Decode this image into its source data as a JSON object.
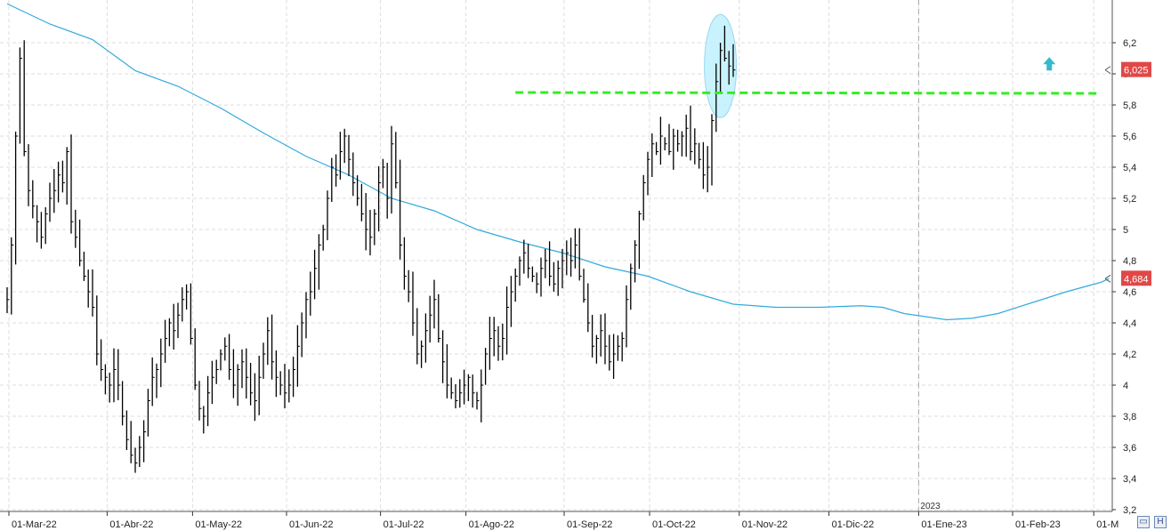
{
  "chart_data": {
    "type": "ohlc",
    "title": "",
    "xlabel": "",
    "ylabel": "",
    "ylim": [
      3.2,
      6.45
    ],
    "yticks": [
      "3,2",
      "3,4",
      "3,6",
      "3,8",
      "4",
      "4,2",
      "4,4",
      "4,6",
      "4,8",
      "5",
      "5,2",
      "5,4",
      "5,6",
      "5,8",
      "6",
      "6,2"
    ],
    "ytick_values": [
      3.2,
      3.4,
      3.6,
      3.8,
      4.0,
      4.2,
      4.4,
      4.6,
      4.8,
      5.0,
      5.2,
      5.4,
      5.6,
      5.8,
      6.0,
      6.2
    ],
    "x_months": [
      {
        "label": "01-Mar-22",
        "bar": 0
      },
      {
        "label": "01-Abr-22",
        "bar": 23
      },
      {
        "label": "01-May-22",
        "bar": 43
      },
      {
        "label": "01-Jun-22",
        "bar": 65
      },
      {
        "label": "01-Jul-22",
        "bar": 87
      },
      {
        "label": "01-Ago-22",
        "bar": 107
      },
      {
        "label": "01-Sep-22",
        "bar": 130
      },
      {
        "label": "01-Oct-22",
        "bar": 150
      },
      {
        "label": "01-Nov-22",
        "bar": 171
      },
      {
        "label": "01-Dic-22",
        "bar": 192
      },
      {
        "label": "01-Ene-23",
        "bar": 213
      },
      {
        "label": "01-Feb-23",
        "bar": 235
      },
      {
        "label": "01-M",
        "bar": 254
      }
    ],
    "year_marker": {
      "label": "2023",
      "bar": 213
    },
    "price_close": [
      4.55,
      4.9,
      5.6,
      6.1,
      5.5,
      5.25,
      5.15,
      5.05,
      4.95,
      5.1,
      5.2,
      5.25,
      5.35,
      5.3,
      5.5,
      5.05,
      4.95,
      4.8,
      4.7,
      4.6,
      4.5,
      4.2,
      4.1,
      4.05,
      4.0,
      4.1,
      4.0,
      3.8,
      3.65,
      3.55,
      3.5,
      3.6,
      3.7,
      3.9,
      4.05,
      4.1,
      4.2,
      4.3,
      4.4,
      4.35,
      4.45,
      4.55,
      4.6,
      4.3,
      4.0,
      3.85,
      3.8,
      3.95,
      4.05,
      4.1,
      4.2,
      4.25,
      4.1,
      4.0,
      4.1,
      4.15,
      4.05,
      3.95,
      3.9,
      4.05,
      4.2,
      4.35,
      4.15,
      4.05,
      4.0,
      3.95,
      4.0,
      4.1,
      4.25,
      4.4,
      4.55,
      4.6,
      4.75,
      4.9,
      5.0,
      5.2,
      5.4,
      5.35,
      5.5,
      5.6,
      5.45,
      5.3,
      5.2,
      5.1,
      5.0,
      4.95,
      5.1,
      5.3,
      5.4,
      5.2,
      5.55,
      5.3,
      4.9,
      4.7,
      4.6,
      4.4,
      4.2,
      4.25,
      4.35,
      4.45,
      4.55,
      4.3,
      4.15,
      4.0,
      3.95,
      3.9,
      3.95,
      4.0,
      4.05,
      3.95,
      3.9,
      4.0,
      4.2,
      4.3,
      4.35,
      4.25,
      4.3,
      4.5,
      4.6,
      4.7,
      4.8,
      4.85,
      4.75,
      4.7,
      4.65,
      4.75,
      4.8,
      4.7,
      4.65,
      4.75,
      4.8,
      4.85,
      4.8,
      4.9,
      4.7,
      4.55,
      4.4,
      4.25,
      4.3,
      4.35,
      4.25,
      4.15,
      4.2,
      4.25,
      4.3,
      4.55,
      4.75,
      4.9,
      5.1,
      5.3,
      5.45,
      5.55,
      5.5,
      5.6,
      5.55,
      5.5,
      5.6,
      5.55,
      5.6,
      5.65,
      5.5,
      5.55,
      5.45,
      5.35,
      5.4,
      5.7,
      5.95,
      6.15,
      6.1,
      6.05,
      6.025
    ],
    "sma_label": "4,684",
    "sma_value": 4.684,
    "last_price_label": "6,025",
    "last_price_value": 6.025,
    "resistance_level": 5.88,
    "breakout_arrow_value": 6.05,
    "colors": {
      "bars": "#000000",
      "sma_line": "#33aadd",
      "resistance": "#33ee22",
      "highlight": "#bff0ff",
      "arrow": "#33bbcc",
      "price_badge": "#e04848"
    }
  },
  "ui": {
    "corner_left_icon": "window-icon",
    "corner_right_label": "H"
  }
}
